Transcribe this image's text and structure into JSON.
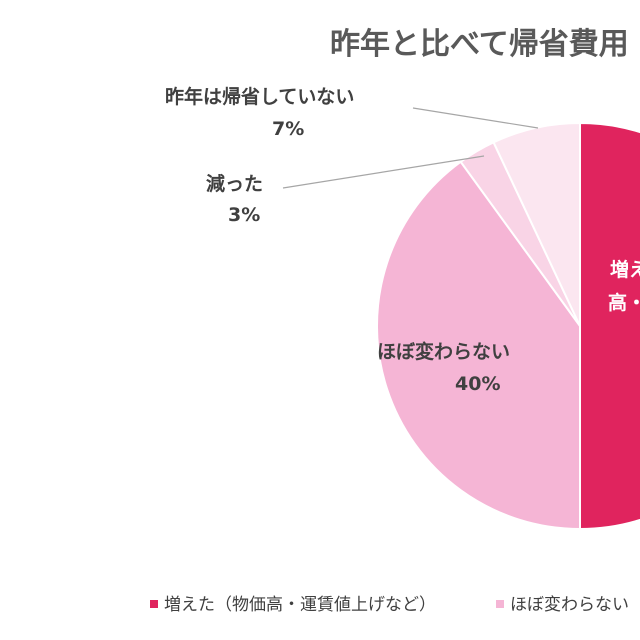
{
  "chart_data": {
    "type": "pie",
    "title": "昨年と比べて帰省費用",
    "slices": [
      {
        "label": "増えた（物価高・運賃値上げなど）",
        "value": 50,
        "display": "増",
        "color": "#e0245e"
      },
      {
        "label": "ほぼ変わらない",
        "value": 40,
        "display": "ほぼ変わらない",
        "value_label": "40%",
        "color": "#f5b5d5"
      },
      {
        "label": "減った",
        "value": 3,
        "display": "減った",
        "value_label": "3%",
        "color": "#f9d4e6"
      },
      {
        "label": "昨年は帰省していない",
        "value": 7,
        "display": "昨年は帰省していない",
        "value_label": "7%",
        "color": "#fbe6f0"
      }
    ],
    "legend": {
      "position": "bottom",
      "items": [
        "増えた（物価高・運賃値上げなど）",
        "ほぼ変わらない"
      ]
    },
    "partial_labels": {
      "increase_line1": "増え",
      "increase_line2": "高・"
    }
  }
}
